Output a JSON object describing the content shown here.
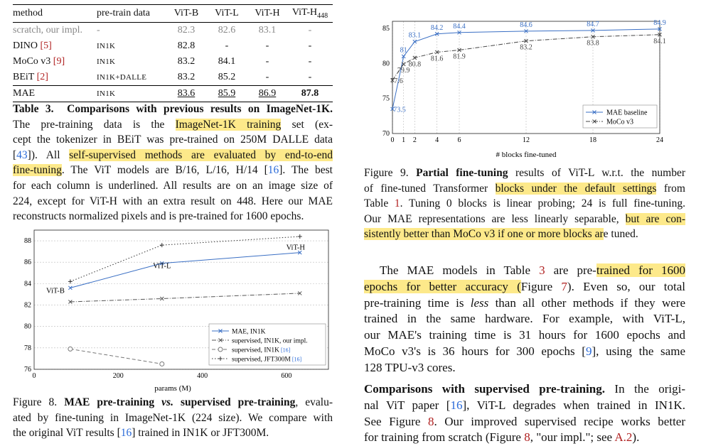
{
  "table3": {
    "headers": [
      "method",
      "pre-train data",
      "ViT-B",
      "ViT-L",
      "ViT-H",
      "ViT-H448"
    ],
    "rows": [
      {
        "method": "scratch, our impl.",
        "data": "-",
        "b": "82.3",
        "l": "82.6",
        "h": "83.1",
        "h448": "-"
      },
      {
        "method": "DINO",
        "ref": "[5]",
        "data": "IN1K",
        "b": "82.8",
        "l": "-",
        "h": "-",
        "h448": "-"
      },
      {
        "method": "MoCo v3",
        "ref": "[9]",
        "data": "IN1K",
        "b": "83.2",
        "l": "84.1",
        "h": "-",
        "h448": "-"
      },
      {
        "method": "BEiT",
        "ref": "[2]",
        "data": "IN1K+DALLE",
        "b": "83.2",
        "l": "85.2",
        "h": "-",
        "h448": "-"
      },
      {
        "method": "MAE",
        "data": "IN1K",
        "b": "83.6",
        "l": "85.9",
        "h": "86.9",
        "h448": "87.8"
      }
    ],
    "caption_label": "Table 3.",
    "caption_bold": "Comparisons with previous results on ImageNet-1K.",
    "caption_lines": [
      "The pre-training data is the ImageNet-1K training set (ex-",
      "cept the tokenizer in BEiT was pre-trained on 250M DALLE data",
      "[43]). All self-supervised methods are evaluated by end-to-end",
      "fine-tuning. The ViT models are B/16, L/16, H/14 [16]. The best",
      "for each column is underlined. All results are on an image size of",
      "224, except for ViT-H with an extra result on 448. Here our MAE",
      "reconstructs normalized pixels and is pre-trained for 1600 epochs."
    ]
  },
  "fig9": {
    "caption_label": "Figure 9.",
    "caption_bold": "Partial fine-tuning",
    "caption_lines": [
      "results of ViT-L w.r.t. the number",
      "of fine-tuned Transformer blocks under the default settings from",
      "Table 1. Tuning 0 blocks is linear probing; 24 is full fine-tuning.",
      "Our MAE representations are less linearly separable, but are con-",
      "sistently better than MoCo v3 if one or more blocks are tuned."
    ]
  },
  "fig8": {
    "caption_label": "Figure 8.",
    "caption_bold": "MAE pre-training vs. supervised pre-training",
    "caption_lines": [
      ", evalu-",
      "ated by fine-tuning in ImageNet-1K (224 size). We compare with",
      "the original ViT results [16] trained in IN1K or JFT300M."
    ]
  },
  "body_text": {
    "para1": [
      "The MAE models in Table 3 are pre-trained for 1600",
      "epochs for better accuracy (Figure 7). Even so, our total",
      "pre-training time is less than all other methods if they were",
      "trained in the same hardware. For example, with ViT-L,",
      "our MAE's training time is 31 hours for 1600 epochs and",
      "MoCo v3's is 36 hours for 300 epochs [9], using the same",
      "128 TPU-v3 cores."
    ],
    "para2_heading": "Comparisons with supervised pre-training.",
    "para2": [
      "In the origi-",
      "nal ViT paper [16], ViT-L degrades when trained in IN1K.",
      "See Figure 8. Our improved supervised recipe works better",
      "for training from scratch (Figure 8, \"our impl.\"; see A.2)."
    ]
  },
  "chart_data": [
    {
      "id": "figure-9",
      "type": "line",
      "xlabel": "# blocks fine-tuned",
      "ylabel": "",
      "x_ticks": [
        0,
        1,
        2,
        4,
        6,
        12,
        18,
        24
      ],
      "y_ticks": [
        70,
        75,
        80,
        85
      ],
      "ylim": [
        70,
        86
      ],
      "xlim": [
        0,
        24
      ],
      "grid": "vertical dashed at x ticks",
      "legend_position": "bottom-right",
      "series": [
        {
          "name": "MAE baseline",
          "color": "#3a6fc4",
          "style": "solid",
          "marker": "x",
          "x": [
            0,
            1,
            2,
            4,
            6,
            12,
            18,
            24
          ],
          "y": [
            73.5,
            81.0,
            83.1,
            84.2,
            84.4,
            84.6,
            84.7,
            84.9
          ]
        },
        {
          "name": "MoCo v3",
          "color": "#444444",
          "style": "dashdot",
          "marker": "x",
          "x": [
            0,
            1,
            2,
            4,
            6,
            12,
            18,
            24
          ],
          "y": [
            77.6,
            79.9,
            80.8,
            81.6,
            81.9,
            83.2,
            83.8,
            84.1
          ]
        }
      ]
    },
    {
      "id": "figure-8",
      "type": "line",
      "xlabel": "params (M)",
      "ylabel": "",
      "x_ticks": [
        0,
        200,
        400,
        600
      ],
      "y_ticks": [
        76,
        78,
        80,
        82,
        84,
        86,
        88
      ],
      "xlim": [
        0,
        700
      ],
      "ylim": [
        76,
        89
      ],
      "grid": "horizontal dashed at y ticks",
      "legend_position": "bottom-right",
      "point_labels": [
        {
          "text": "ViT-B",
          "x": 86,
          "y": 83.6
        },
        {
          "text": "ViT-L",
          "x": 304,
          "y": 85.9
        },
        {
          "text": "ViT-H",
          "x": 632,
          "y": 86.9
        }
      ],
      "series": [
        {
          "name": "MAE, IN1K",
          "color": "#3a6fc4",
          "style": "solid",
          "marker": "x",
          "x": [
            86,
            304,
            632
          ],
          "y": [
            83.6,
            85.9,
            86.9
          ]
        },
        {
          "name": "supervised, IN1K, our impl.",
          "color": "#555555",
          "style": "dashdot",
          "marker": "x",
          "x": [
            86,
            304,
            632
          ],
          "y": [
            82.3,
            82.6,
            83.1
          ]
        },
        {
          "name": "supervised, IN1K",
          "ref": "[16]",
          "color": "#777777",
          "style": "dashed",
          "marker": "o",
          "x": [
            86,
            304
          ],
          "y": [
            77.9,
            76.5
          ]
        },
        {
          "name": "supervised, JFT300M",
          "ref": "[16]",
          "color": "#333333",
          "style": "dotted",
          "marker": "+",
          "x": [
            86,
            304,
            632
          ],
          "y": [
            84.2,
            87.6,
            88.4
          ]
        }
      ]
    }
  ]
}
